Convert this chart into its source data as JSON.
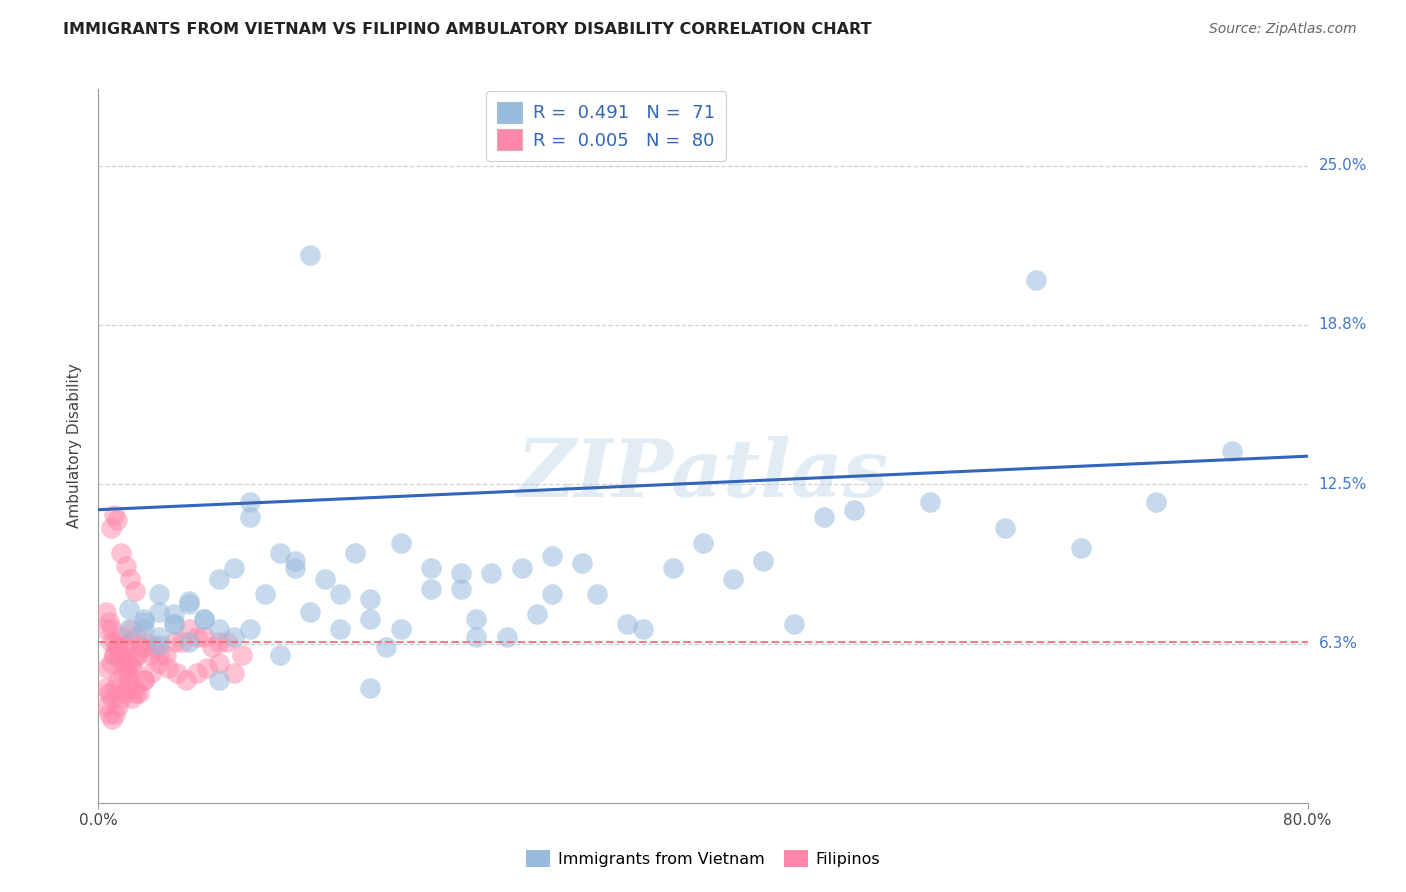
{
  "title": "IMMIGRANTS FROM VIETNAM VS FILIPINO AMBULATORY DISABILITY CORRELATION CHART",
  "source": "Source: ZipAtlas.com",
  "ylabel": "Ambulatory Disability",
  "x_min": 0.0,
  "x_max": 0.8,
  "y_min": 0.0,
  "y_max": 0.28,
  "y_ticks": [
    0.0625,
    0.125,
    0.1875,
    0.25
  ],
  "y_tick_labels": [
    "6.3%",
    "12.5%",
    "18.8%",
    "25.0%"
  ],
  "grid_color": "#cccccc",
  "background_color": "#ffffff",
  "legend_R1": "0.491",
  "legend_N1": "71",
  "legend_R2": "0.005",
  "legend_N2": "80",
  "blue_color": "#99bbdd",
  "pink_color": "#ff88aa",
  "blue_line_color": "#3366bb",
  "pink_line_color": "#ee6677",
  "watermark": "ZIPatlas",
  "blue_line_x0": 0.0,
  "blue_line_y0": 0.115,
  "blue_line_x1": 0.8,
  "blue_line_y1": 0.136,
  "pink_line_y": 0.063,
  "blue_scatter_x": [
    0.02,
    0.03,
    0.04,
    0.02,
    0.05,
    0.06,
    0.03,
    0.04,
    0.05,
    0.07,
    0.08,
    0.06,
    0.09,
    0.1,
    0.12,
    0.14,
    0.15,
    0.13,
    0.16,
    0.18,
    0.2,
    0.22,
    0.24,
    0.26,
    0.28,
    0.3,
    0.32,
    0.14,
    0.16,
    0.18,
    0.2,
    0.1,
    0.08,
    0.06,
    0.04,
    0.25,
    0.27,
    0.3,
    0.35,
    0.38,
    0.4,
    0.42,
    0.44,
    0.46,
    0.5,
    0.55,
    0.6,
    0.65,
    0.7,
    0.75,
    0.03,
    0.04,
    0.05,
    0.07,
    0.09,
    0.11,
    0.13,
    0.22,
    0.24,
    0.17,
    0.19,
    0.08,
    0.1,
    0.12,
    0.33,
    0.36,
    0.29,
    0.18,
    0.25,
    0.62,
    0.48
  ],
  "blue_scatter_y": [
    0.076,
    0.071,
    0.082,
    0.068,
    0.074,
    0.079,
    0.072,
    0.075,
    0.07,
    0.072,
    0.088,
    0.078,
    0.092,
    0.112,
    0.098,
    0.215,
    0.088,
    0.095,
    0.082,
    0.08,
    0.102,
    0.092,
    0.084,
    0.09,
    0.092,
    0.097,
    0.094,
    0.075,
    0.068,
    0.072,
    0.068,
    0.118,
    0.068,
    0.063,
    0.065,
    0.072,
    0.065,
    0.082,
    0.07,
    0.092,
    0.102,
    0.088,
    0.095,
    0.07,
    0.115,
    0.118,
    0.108,
    0.1,
    0.118,
    0.138,
    0.068,
    0.062,
    0.07,
    0.072,
    0.065,
    0.082,
    0.092,
    0.084,
    0.09,
    0.098,
    0.061,
    0.048,
    0.068,
    0.058,
    0.082,
    0.068,
    0.074,
    0.045,
    0.065,
    0.205,
    0.112
  ],
  "pink_scatter_x": [
    0.005,
    0.008,
    0.01,
    0.012,
    0.015,
    0.018,
    0.02,
    0.022,
    0.025,
    0.008,
    0.01,
    0.012,
    0.005,
    0.007,
    0.009,
    0.011,
    0.014,
    0.016,
    0.019,
    0.021,
    0.024,
    0.027,
    0.03,
    0.035,
    0.04,
    0.05,
    0.06,
    0.07,
    0.08,
    0.015,
    0.018,
    0.021,
    0.024,
    0.006,
    0.008,
    0.01,
    0.013,
    0.016,
    0.019,
    0.022,
    0.025,
    0.028,
    0.032,
    0.038,
    0.045,
    0.055,
    0.065,
    0.075,
    0.085,
    0.095,
    0.005,
    0.007,
    0.009,
    0.011,
    0.013,
    0.015,
    0.017,
    0.019,
    0.022,
    0.025,
    0.03,
    0.005,
    0.007,
    0.009,
    0.011,
    0.013,
    0.016,
    0.019,
    0.022,
    0.026,
    0.03,
    0.035,
    0.04,
    0.046,
    0.052,
    0.058,
    0.065,
    0.072,
    0.08,
    0.09
  ],
  "pink_scatter_y": [
    0.068,
    0.063,
    0.058,
    0.061,
    0.065,
    0.061,
    0.063,
    0.068,
    0.065,
    0.108,
    0.113,
    0.111,
    0.075,
    0.071,
    0.068,
    0.063,
    0.058,
    0.055,
    0.051,
    0.048,
    0.045,
    0.043,
    0.048,
    0.051,
    0.058,
    0.063,
    0.068,
    0.065,
    0.063,
    0.098,
    0.093,
    0.088,
    0.083,
    0.053,
    0.055,
    0.058,
    0.061,
    0.058,
    0.055,
    0.053,
    0.058,
    0.061,
    0.063,
    0.061,
    0.058,
    0.063,
    0.065,
    0.061,
    0.063,
    0.058,
    0.038,
    0.035,
    0.033,
    0.035,
    0.038,
    0.041,
    0.043,
    0.045,
    0.041,
    0.043,
    0.048,
    0.045,
    0.043,
    0.041,
    0.045,
    0.048,
    0.051,
    0.053,
    0.055,
    0.058,
    0.061,
    0.058,
    0.055,
    0.053,
    0.051,
    0.048,
    0.051,
    0.053,
    0.055,
    0.051
  ]
}
